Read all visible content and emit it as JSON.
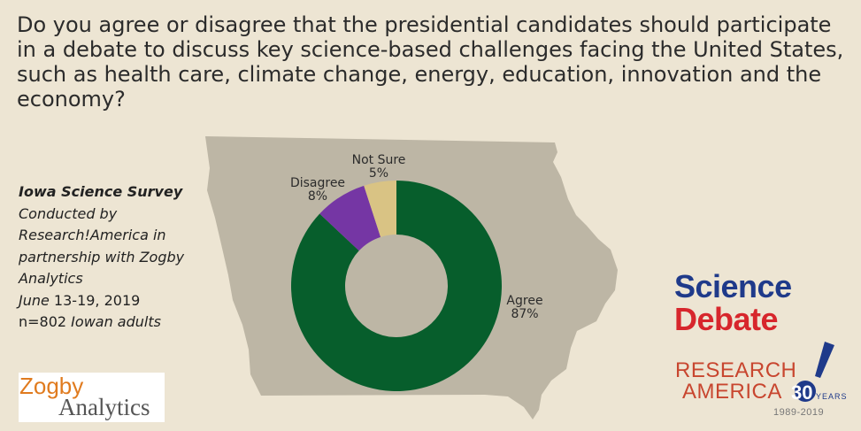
{
  "question": "Do you agree or disagree that the presidential candidates should participate in a debate to discuss key science-based challenges facing the United States, such as health care, climate change, energy, education, innovation and the economy?",
  "survey": {
    "title": "Iowa Science Survey",
    "line1": "Conducted by",
    "line2": "Research!America in",
    "line3": "partnership with Zogby",
    "line4": "Analytics",
    "dates_italic": "June",
    "dates_plain": " 13-19, 2019",
    "n_plain": "n=802",
    "n_italic": " Iowan adults"
  },
  "logos": {
    "zogby_line1": "Zogby",
    "zogby_line2": "Analytics",
    "science_debate_line1": "Science",
    "science_debate_line2": "Debate",
    "research_line1": "RESEARCH",
    "research_line2": "AMERICA",
    "research_30": "30",
    "research_years": "YEARS",
    "research_dates": "1989-2019"
  },
  "colors": {
    "background": "#ede5d3",
    "iowa_map": "#bdb6a5",
    "agree": "#075e2c",
    "disagree": "#7536a4",
    "not_sure": "#d9c384"
  },
  "chart_data": {
    "type": "pie",
    "subtype": "donut",
    "slices": [
      {
        "label": "Agree",
        "value": 87,
        "value_label": "87%",
        "color": "#075e2c"
      },
      {
        "label": "Disagree",
        "value": 8,
        "value_label": "8%",
        "color": "#7536a4"
      },
      {
        "label": "Not Sure",
        "value": 5,
        "value_label": "5%",
        "color": "#d9c384"
      }
    ]
  }
}
